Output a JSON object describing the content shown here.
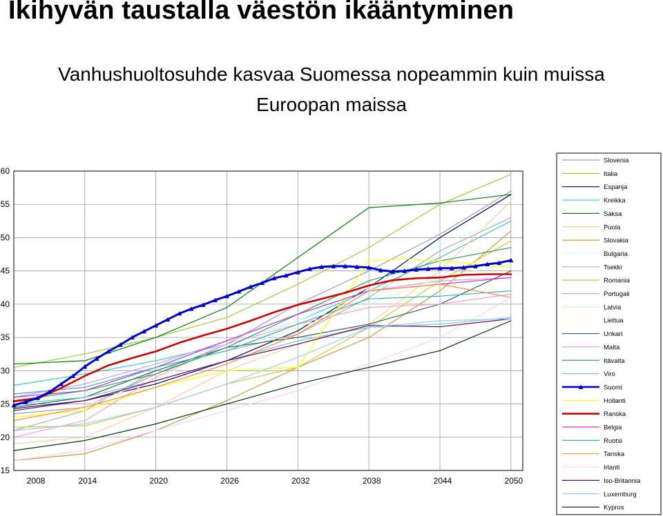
{
  "header": {
    "title": "Ikihyvän taustalla väestön ikääntyminen",
    "subtitle_line1": "Vanhushuoltosuhde kasvaa Suomessa nopeammin kuin muissa",
    "subtitle_line2": "Euroopan maissa"
  },
  "chart_data": {
    "type": "line",
    "title": "",
    "xlabel": "",
    "ylabel": "",
    "xlim": [
      2008,
      2051
    ],
    "ylim": [
      15,
      60
    ],
    "x_ticks": [
      "2008",
      "2014",
      "2020",
      "2026",
      "2032",
      "2038",
      "2044",
      "2050"
    ],
    "y_ticks": [
      "15",
      "20",
      "25",
      "30",
      "35",
      "40",
      "45",
      "50",
      "55",
      "60"
    ],
    "grid": true,
    "legend_position": "right",
    "series": [
      {
        "name": "Slovenia",
        "color": "#9999cc",
        "x": [
          2008,
          2014,
          2020,
          2026,
          2032,
          2038,
          2044,
          2050
        ],
        "y": [
          23.5,
          24.5,
          29.5,
          34,
          40,
          45,
          50.5,
          57
        ]
      },
      {
        "name": "Italia",
        "color": "#99cc33",
        "x": [
          2008,
          2014,
          2020,
          2026,
          2032,
          2038,
          2044,
          2050
        ],
        "y": [
          30.5,
          32.5,
          35,
          38,
          43,
          48.5,
          55,
          59.5
        ]
      },
      {
        "name": "Espanja",
        "color": "#000066",
        "x": [
          2008,
          2014,
          2020,
          2026,
          2032,
          2038,
          2044,
          2050
        ],
        "y": [
          24.3,
          25.5,
          28,
          31.5,
          36,
          42.5,
          50,
          56.5
        ]
      },
      {
        "name": "Kreikka",
        "color": "#33cccc",
        "x": [
          2008,
          2014,
          2020,
          2026,
          2032,
          2038,
          2044,
          2050
        ],
        "y": [
          27.8,
          29.5,
          31.5,
          34,
          37.5,
          42,
          47,
          52.5
        ]
      },
      {
        "name": "Saksa",
        "color": "#008000",
        "x": [
          2008,
          2014,
          2020,
          2026,
          2032,
          2038,
          2044,
          2050
        ],
        "y": [
          31,
          31.5,
          35,
          39.5,
          47,
          54.5,
          55.2,
          56.5
        ]
      },
      {
        "name": "Puola",
        "color": "#ffcc99",
        "x": [
          2008,
          2014,
          2020,
          2026,
          2032,
          2038,
          2044,
          2050
        ],
        "y": [
          19,
          20,
          24.5,
          30,
          34,
          37,
          45,
          55.5
        ]
      },
      {
        "name": "Slovakia",
        "color": "#cc9933",
        "x": [
          2008,
          2014,
          2020,
          2026,
          2032,
          2038,
          2044,
          2050
        ],
        "y": [
          16.5,
          17.5,
          21,
          25.5,
          30.5,
          35,
          42,
          51
        ]
      },
      {
        "name": "Bulgaria",
        "color": "#ccffff",
        "x": [
          2008,
          2014,
          2020,
          2026,
          2032,
          2038,
          2044,
          2050
        ],
        "y": [
          25,
          27,
          30.5,
          34,
          37.5,
          42.5,
          49,
          53
        ]
      },
      {
        "name": "Tsekki",
        "color": "#aaaaaa",
        "x": [
          2008,
          2014,
          2020,
          2026,
          2032,
          2038,
          2044,
          2050
        ],
        "y": [
          21,
          24,
          30,
          33,
          35.5,
          41,
          48,
          53
        ]
      },
      {
        "name": "Romania",
        "color": "#cccc33",
        "x": [
          2008,
          2014,
          2020,
          2026,
          2032,
          2038,
          2044,
          2050
        ],
        "y": [
          21.5,
          21.7,
          24.5,
          28,
          30.5,
          36.5,
          43.5,
          49.5
        ]
      },
      {
        "name": "Portugali",
        "color": "#cc99ff",
        "x": [
          2008,
          2014,
          2020,
          2026,
          2032,
          2038,
          2044,
          2050
        ],
        "y": [
          26,
          28,
          31,
          34.5,
          38.5,
          42,
          43.5,
          44
        ]
      },
      {
        "name": "Latvia",
        "color": "#ccffcc",
        "x": [
          2008,
          2014,
          2020,
          2026,
          2032,
          2038,
          2044,
          2050
        ],
        "y": [
          25.5,
          26.5,
          30,
          33,
          36.5,
          40,
          44,
          46
        ]
      },
      {
        "name": "Liettua",
        "color": "#ffffcc",
        "x": [
          2008,
          2014,
          2020,
          2026,
          2032,
          2038,
          2044,
          2050
        ],
        "y": [
          23,
          24.5,
          29,
          33,
          37,
          42,
          45.5,
          47
        ]
      },
      {
        "name": "Unkari",
        "color": "#336666",
        "x": [
          2008,
          2014,
          2020,
          2026,
          2032,
          2038,
          2044,
          2050
        ],
        "y": [
          24.5,
          26,
          30,
          33.5,
          35,
          37,
          40,
          45
        ]
      },
      {
        "name": "Malta",
        "color": "#ff99cc",
        "x": [
          2008,
          2014,
          2020,
          2026,
          2032,
          2038,
          2044,
          2050
        ],
        "y": [
          20,
          22.5,
          29,
          34,
          37,
          39.5,
          40,
          41.5
        ]
      },
      {
        "name": "Itävalta",
        "color": "#339966",
        "x": [
          2008,
          2014,
          2020,
          2026,
          2032,
          2038,
          2044,
          2050
        ],
        "y": [
          25.5,
          27,
          29.5,
          33.5,
          38.5,
          43.5,
          46.5,
          48.5
        ]
      },
      {
        "name": "Viro",
        "color": "#66cccc",
        "x": [
          2008,
          2014,
          2020,
          2026,
          2032,
          2038,
          2044,
          2050
        ],
        "y": [
          25,
          26,
          28.5,
          31.5,
          34.5,
          36.5,
          37,
          38
        ]
      },
      {
        "name": "Suomi",
        "color": "#0000cc",
        "x": [
          2008,
          2009,
          2010,
          2011,
          2012,
          2013,
          2014,
          2015,
          2016,
          2017,
          2018,
          2019,
          2020,
          2021,
          2022,
          2023,
          2024,
          2025,
          2026,
          2027,
          2028,
          2029,
          2030,
          2031,
          2032,
          2033,
          2034,
          2035,
          2036,
          2037,
          2038,
          2039,
          2040,
          2041,
          2042,
          2043,
          2044,
          2045,
          2046,
          2047,
          2048,
          2049,
          2050
        ],
        "y": [
          24.8,
          25.3,
          25.9,
          26.8,
          28.0,
          29.2,
          30.6,
          31.8,
          32.9,
          33.9,
          35.0,
          35.9,
          36.8,
          37.7,
          38.6,
          39.3,
          39.9,
          40.6,
          41.2,
          41.9,
          42.6,
          43.2,
          43.9,
          44.3,
          44.8,
          45.3,
          45.6,
          45.7,
          45.7,
          45.6,
          45.5,
          45.1,
          44.9,
          45.0,
          45.2,
          45.3,
          45.4,
          45.4,
          45.5,
          45.7,
          46.0,
          46.2,
          46.6
        ]
      },
      {
        "name": "Hollanti",
        "color": "#ffff00",
        "x": [
          2008,
          2014,
          2020,
          2026,
          2032,
          2038,
          2041,
          2044,
          2047,
          2050
        ],
        "y": [
          23,
          24,
          27.5,
          30,
          30.5,
          46.5,
          46.8,
          46.5,
          46,
          45.5
        ]
      },
      {
        "name": "Ranska",
        "color": "#cc0000",
        "x": [
          2008,
          2010,
          2012,
          2014,
          2016,
          2018,
          2020,
          2022,
          2024,
          2026,
          2028,
          2030,
          2032,
          2034,
          2036,
          2038,
          2040,
          2042,
          2044,
          2046,
          2048,
          2050
        ],
        "y": [
          25.4,
          25.8,
          27.4,
          29.2,
          30.8,
          31.9,
          32.9,
          34.2,
          35.3,
          36.3,
          37.5,
          38.8,
          39.9,
          40.8,
          41.7,
          42.8,
          43.6,
          43.9,
          44.0,
          44.4,
          44.5,
          44.5
        ]
      },
      {
        "name": "Belgia",
        "color": "#cc33cc",
        "x": [
          2008,
          2014,
          2020,
          2026,
          2032,
          2038,
          2044,
          2050
        ],
        "y": [
          26,
          27,
          30.5,
          34.5,
          38.5,
          42,
          43,
          44
        ]
      },
      {
        "name": "Ruotsi",
        "color": "#33aacc",
        "x": [
          2008,
          2014,
          2020,
          2026,
          2032,
          2038,
          2044,
          2050
        ],
        "y": [
          26.5,
          27.5,
          30.5,
          33,
          37,
          40.8,
          41.2,
          42
        ]
      },
      {
        "name": "Tanska",
        "color": "#ff8833",
        "x": [
          2008,
          2014,
          2020,
          2026,
          2032,
          2038,
          2044,
          2050
        ],
        "y": [
          22.5,
          24.5,
          27.5,
          31,
          35.5,
          42,
          43,
          41
        ]
      },
      {
        "name": "Irlanti",
        "color": "#ffccff",
        "x": [
          2008,
          2014,
          2020,
          2026,
          2032,
          2038,
          2044,
          2050
        ],
        "y": [
          16.5,
          18,
          21,
          24,
          27,
          31,
          35,
          41
        ]
      },
      {
        "name": "Iso-Britannia",
        "color": "#660066",
        "x": [
          2008,
          2014,
          2020,
          2026,
          2032,
          2038,
          2044,
          2050
        ],
        "y": [
          24,
          25.5,
          28.5,
          31.5,
          34,
          36.8,
          36.6,
          37.8
        ]
      },
      {
        "name": "Luxemburg",
        "color": "#99ccff",
        "x": [
          2008,
          2014,
          2020,
          2026,
          2032,
          2038,
          2044,
          2050
        ],
        "y": [
          21,
          22,
          24.5,
          28,
          32,
          36.5,
          37.5,
          37.8
        ]
      },
      {
        "name": "Kypros",
        "color": "#003300",
        "x": [
          2008,
          2014,
          2020,
          2026,
          2032,
          2038,
          2044,
          2050
        ],
        "y": [
          18,
          19.5,
          22,
          25,
          28,
          30.5,
          33,
          37.5
        ]
      }
    ]
  }
}
